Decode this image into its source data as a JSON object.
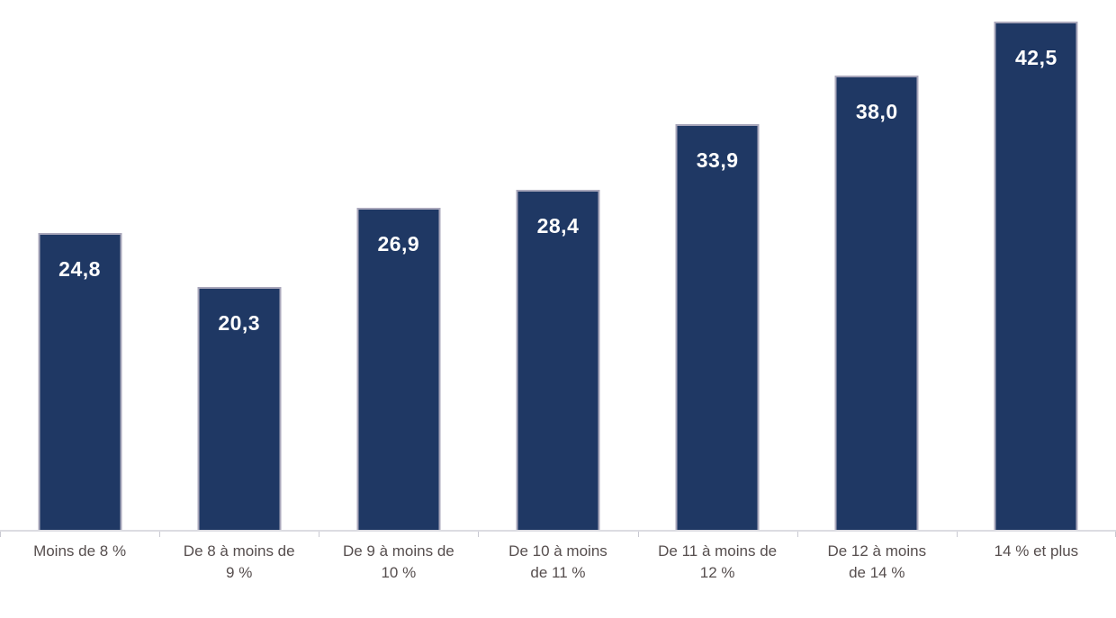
{
  "chart_data": {
    "type": "bar",
    "title": "",
    "xlabel": "",
    "ylabel": "",
    "categories": [
      "Moins de 8 %",
      "De 8 à moins de 9 %",
      "De 9 à moins de 10 %",
      "De 10 à moins de 11 %",
      "De 11 à moins de 12 %",
      "De 12 à moins de 14 %",
      "14 % et plus"
    ],
    "values": [
      24.8,
      20.3,
      26.9,
      28.4,
      33.9,
      38.0,
      42.5
    ],
    "value_labels": [
      "24,8",
      "20,3",
      "26,9",
      "28,4",
      "33,9",
      "38,0",
      "42,5"
    ],
    "ylim": [
      0,
      44.3
    ],
    "grid": false,
    "legend": "none",
    "colors": {
      "bar_fill": "#1f3864",
      "bar_border": "#a9a7bb",
      "value_label": "#ffffff",
      "axis_line": "#dcdce2",
      "tick_mark": "#c9c9d2",
      "axis_label": "#564e4e"
    }
  }
}
